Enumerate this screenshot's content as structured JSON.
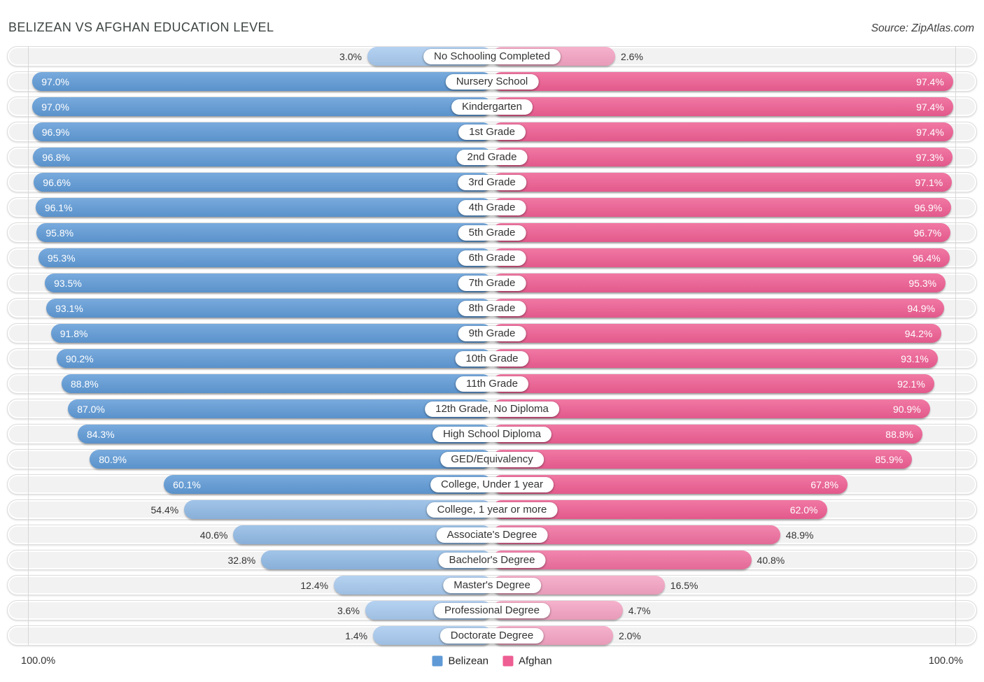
{
  "header": {
    "title": "BELIZEAN VS AFGHAN EDUCATION LEVEL",
    "source": "Source: ZipAtlas.com"
  },
  "footer": {
    "left_axis_label": "100.0%",
    "right_axis_label": "100.0%"
  },
  "legend": {
    "belizean_label": "Belizean",
    "afghan_label": "Afghan"
  },
  "colors": {
    "belizean": {
      "strong": "#5f9ad6",
      "medium": "#90b9e4",
      "light": "#a7c9ee"
    },
    "afghan": {
      "strong": "#ee5e92",
      "medium": "#ef6f9e",
      "light": "#f4a3c2"
    },
    "track": "#f2f2f3",
    "value_text_outside": "#333333",
    "value_text_inside": "#ffffff"
  },
  "chart_data": {
    "type": "bar",
    "variant": "diverging-horizontal-pyramid",
    "title": "BELIZEAN VS AFGHAN EDUCATION LEVEL",
    "source": "Source: ZipAtlas.com",
    "legend_position": "bottom-center",
    "axis_max_percent": 100.0,
    "grid": "single 100% gridline at each outer edge",
    "categories": [
      "No Schooling Completed",
      "Nursery School",
      "Kindergarten",
      "1st Grade",
      "2nd Grade",
      "3rd Grade",
      "4th Grade",
      "5th Grade",
      "6th Grade",
      "7th Grade",
      "8th Grade",
      "9th Grade",
      "10th Grade",
      "11th Grade",
      "12th Grade, No Diploma",
      "High School Diploma",
      "GED/Equivalency",
      "College, Under 1 year",
      "College, 1 year or more",
      "Associate's Degree",
      "Bachelor's Degree",
      "Master's Degree",
      "Professional Degree",
      "Doctorate Degree"
    ],
    "series": [
      {
        "name": "Belizean",
        "side": "left",
        "values": [
          3.0,
          97.0,
          97.0,
          96.9,
          96.8,
          96.6,
          96.1,
          95.8,
          95.3,
          93.5,
          93.1,
          91.8,
          90.2,
          88.8,
          87.0,
          84.3,
          80.9,
          60.1,
          54.4,
          40.6,
          32.8,
          12.4,
          3.6,
          1.4
        ]
      },
      {
        "name": "Afghan",
        "side": "right",
        "values": [
          2.6,
          97.4,
          97.4,
          97.4,
          97.3,
          97.1,
          96.9,
          96.7,
          96.4,
          95.3,
          94.9,
          94.2,
          93.1,
          92.1,
          90.9,
          88.8,
          85.9,
          67.8,
          62.0,
          48.9,
          40.8,
          16.5,
          4.7,
          2.0
        ]
      }
    ],
    "value_label_format": "{value}%"
  }
}
